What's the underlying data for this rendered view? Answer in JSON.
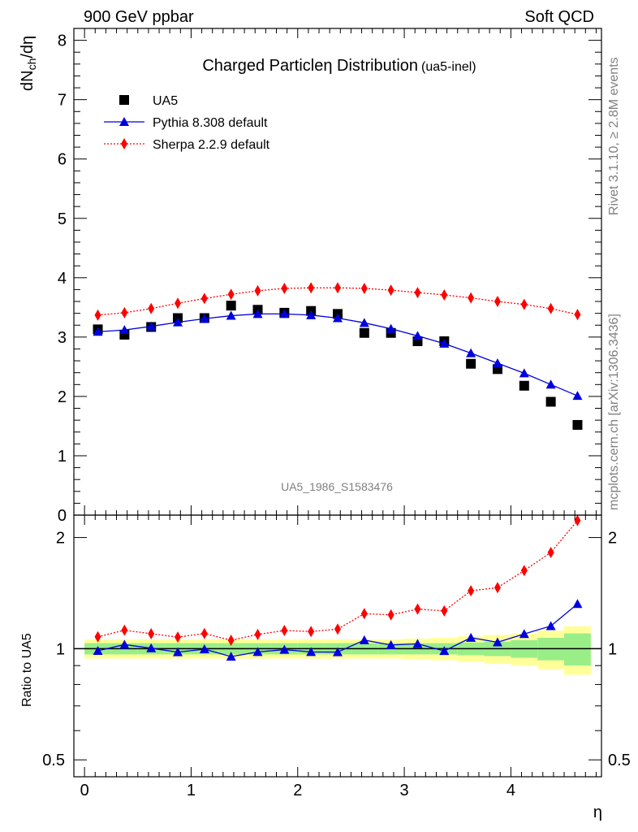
{
  "header": {
    "left": "900 GeV ppbar",
    "right": "Soft QCD"
  },
  "side_text": {
    "rivet": "Rivet 3.1.10, ≥ 2.8M events",
    "mcplots": "mcplots.cern.ch [arXiv:1306.3436]"
  },
  "chart_data": {
    "type": "scatter",
    "title": "Charged Particleη Distribution",
    "subtitle": "(ua5-inel)",
    "watermark": "UA5_1986_S1583476",
    "xlabel": "η",
    "ylabel_main": "dN",
    "ylabel_sub": "ch",
    "ylabel_tail": "/dη",
    "ratio_ylabel": "Ratio to UA5",
    "xlim": [
      -0.1,
      4.85
    ],
    "ylim_main": [
      0,
      8.2
    ],
    "ylim_ratio": [
      0.45,
      2.3
    ],
    "x_ticks": [
      0,
      1,
      2,
      3,
      4
    ],
    "y_ticks_main": [
      0,
      1,
      2,
      3,
      4,
      5,
      6,
      7,
      8
    ],
    "y_ticks_ratio": [
      0.5,
      1,
      2
    ],
    "x": [
      0.125,
      0.375,
      0.625,
      0.875,
      1.125,
      1.375,
      1.625,
      1.875,
      2.125,
      2.375,
      2.625,
      2.875,
      3.125,
      3.375,
      3.625,
      3.875,
      4.125,
      4.375,
      4.625
    ],
    "series": [
      {
        "name": "UA5",
        "color": "#000000",
        "marker": "square",
        "values": [
          3.13,
          3.04,
          3.17,
          3.32,
          3.32,
          3.53,
          3.46,
          3.41,
          3.44,
          3.39,
          3.07,
          3.07,
          2.93,
          2.93,
          2.55,
          2.46,
          2.18,
          1.91,
          1.52
        ]
      },
      {
        "name": "Pythia 8.308 default",
        "color": "#0000dd",
        "marker": "triangle",
        "values": [
          3.09,
          3.12,
          3.18,
          3.25,
          3.31,
          3.36,
          3.39,
          3.39,
          3.37,
          3.32,
          3.24,
          3.14,
          3.02,
          2.89,
          2.73,
          2.56,
          2.39,
          2.2,
          2.01
        ],
        "ratio": [
          0.987,
          1.026,
          1.003,
          0.979,
          0.997,
          0.952,
          0.98,
          0.994,
          0.98,
          0.979,
          1.055,
          1.023,
          1.031,
          0.986,
          1.071,
          1.041,
          1.096,
          1.152,
          1.322
        ]
      },
      {
        "name": "Sherpa 2.2.9 default",
        "color": "#ff0000",
        "marker": "diamond",
        "values": [
          3.37,
          3.41,
          3.48,
          3.57,
          3.65,
          3.72,
          3.78,
          3.82,
          3.83,
          3.83,
          3.82,
          3.79,
          3.75,
          3.71,
          3.66,
          3.6,
          3.55,
          3.48,
          3.38
        ],
        "ratio": [
          1.077,
          1.122,
          1.098,
          1.075,
          1.099,
          1.054,
          1.093,
          1.12,
          1.113,
          1.13,
          1.244,
          1.235,
          1.28,
          1.266,
          1.435,
          1.463,
          1.628,
          1.822,
          2.224
        ]
      }
    ],
    "ratio_band_inner": [
      0.035,
      0.035,
      0.035,
      0.035,
      0.035,
      0.035,
      0.035,
      0.035,
      0.035,
      0.035,
      0.035,
      0.035,
      0.035,
      0.035,
      0.04,
      0.045,
      0.055,
      0.07,
      0.1
    ],
    "ratio_band_outer": [
      0.06,
      0.06,
      0.06,
      0.06,
      0.06,
      0.06,
      0.06,
      0.06,
      0.06,
      0.06,
      0.06,
      0.06,
      0.065,
      0.07,
      0.08,
      0.09,
      0.1,
      0.12,
      0.15
    ],
    "legend_position": "top-left",
    "grid": false
  }
}
